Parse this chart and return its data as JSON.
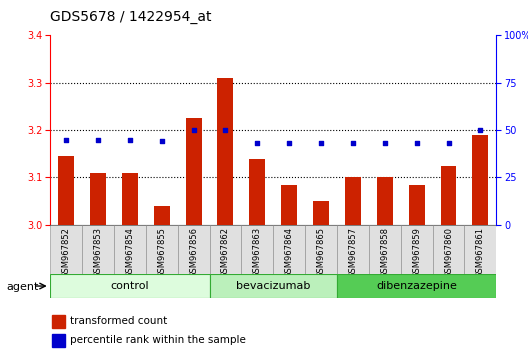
{
  "title": "GDS5678 / 1422954_at",
  "samples": [
    "GSM967852",
    "GSM967853",
    "GSM967854",
    "GSM967855",
    "GSM967856",
    "GSM967862",
    "GSM967863",
    "GSM967864",
    "GSM967865",
    "GSM967857",
    "GSM967858",
    "GSM967859",
    "GSM967860",
    "GSM967861"
  ],
  "bar_values": [
    3.145,
    3.11,
    3.11,
    3.04,
    3.225,
    3.31,
    3.14,
    3.085,
    3.05,
    3.1,
    3.1,
    3.085,
    3.125,
    3.19
  ],
  "dot_values": [
    45,
    45,
    45,
    44,
    50,
    50,
    43,
    43,
    43,
    43,
    43,
    43,
    43,
    50
  ],
  "bar_color": "#cc2200",
  "dot_color": "#0000cc",
  "ylim_left": [
    3.0,
    3.4
  ],
  "ylim_right": [
    0,
    100
  ],
  "yticks_left": [
    3.0,
    3.1,
    3.2,
    3.3,
    3.4
  ],
  "yticks_right": [
    0,
    25,
    50,
    75,
    100
  ],
  "ytick_labels_right": [
    "0",
    "25",
    "50",
    "75",
    "100%"
  ],
  "groups": [
    {
      "label": "control",
      "start": 0,
      "end": 5,
      "color": "#ddfcdd"
    },
    {
      "label": "bevacizumab",
      "start": 5,
      "end": 9,
      "color": "#bbf0bb"
    },
    {
      "label": "dibenzazepine",
      "start": 9,
      "end": 14,
      "color": "#55cc55"
    }
  ],
  "agent_label": "agent",
  "legend_bar_label": "transformed count",
  "legend_dot_label": "percentile rank within the sample",
  "title_fontsize": 10,
  "tick_fontsize": 7,
  "label_fontsize": 6,
  "group_fontsize": 8
}
